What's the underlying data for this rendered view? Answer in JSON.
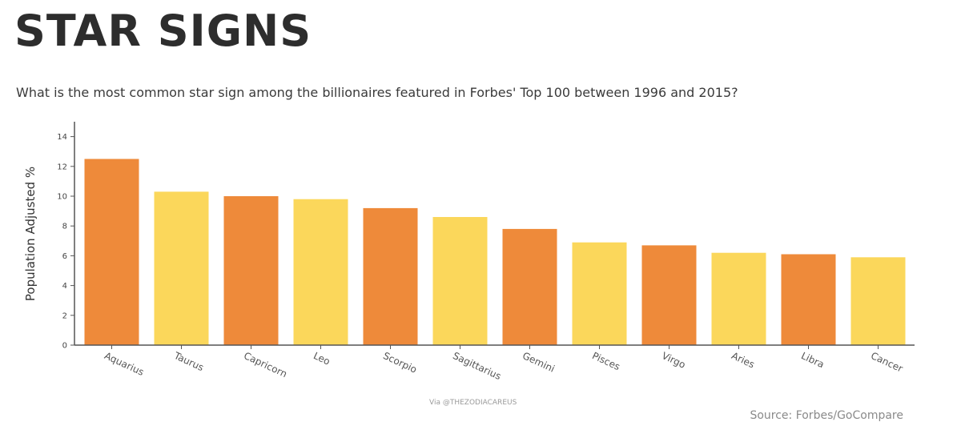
{
  "header": {
    "title": "STAR SIGNS",
    "subtitle": "What is the most common star sign among the billionaires featured in Forbes' Top 100 between 1996 and 2015?"
  },
  "footer": {
    "via": "Via @THEZODIACAREUS",
    "source": "Source: Forbes/GoCompare"
  },
  "colors": {
    "bar_primary": "#ee8a3a",
    "bar_secondary": "#fbd75b",
    "axis": "#555555"
  },
  "chart_data": {
    "type": "bar",
    "title": "STAR SIGNS",
    "xlabel": "",
    "ylabel": "Population Adjusted %",
    "ylim": [
      0,
      15
    ],
    "yticks": [
      0,
      2,
      4,
      6,
      8,
      10,
      12,
      14
    ],
    "categories": [
      "Aquarius",
      "Taurus",
      "Capricorn",
      "Leo",
      "Scorpio",
      "Sagittarius",
      "Gemini",
      "Pisces",
      "Virgo",
      "Aries",
      "Libra",
      "Cancer"
    ],
    "values": [
      12.5,
      10.3,
      10.0,
      9.8,
      9.2,
      8.6,
      7.8,
      6.9,
      6.7,
      6.2,
      6.1,
      5.9
    ],
    "grid": false,
    "legend": "none"
  }
}
